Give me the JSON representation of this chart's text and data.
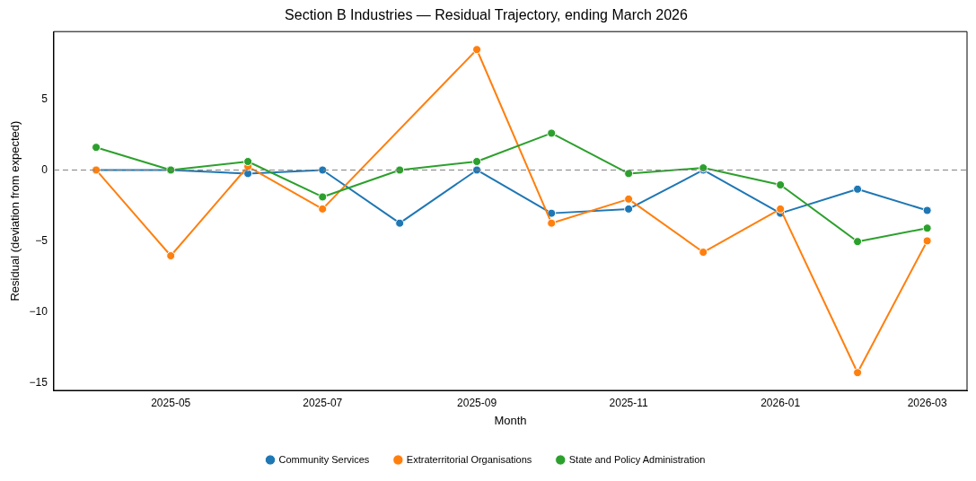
{
  "chart_data": {
    "type": "line",
    "title": "Section B Industries — Residual Trajectory, ending March 2026",
    "xlabel": "Month",
    "ylabel": "Residual (deviation from expected)",
    "x": [
      "2025-04",
      "2025-05",
      "2025-06",
      "2025-07",
      "2025-08",
      "2025-09",
      "2025-10",
      "2025-11",
      "2025-12",
      "2026-01",
      "2026-02",
      "2026-03"
    ],
    "series": [
      {
        "name": "Community Services",
        "color": "#1f77b4",
        "values": [
          0,
          0,
          -0.25,
          0,
          -3.75,
          0,
          -3.05,
          -2.75,
          0,
          -3.05,
          -1.35,
          -2.85
        ]
      },
      {
        "name": "Extraterritorial Organisations",
        "color": "#ff7f0e",
        "values": [
          0,
          -6.05,
          0.25,
          -2.75,
          null,
          8.5,
          -3.75,
          -2.05,
          -5.8,
          -2.75,
          -14.3,
          -5.0
        ]
      },
      {
        "name": "State and Policy Administration",
        "color": "#2ca02c",
        "values": [
          1.6,
          0,
          0.6,
          -1.9,
          0,
          0.6,
          2.6,
          -0.25,
          0.15,
          -1.05,
          -5.05,
          -4.1
        ]
      }
    ],
    "xlim": [
      "2025-03-15",
      "2026-03-17"
    ],
    "xticks": [
      "2025-05",
      "2025-07",
      "2025-09",
      "2025-11",
      "2026-01",
      "2026-03"
    ],
    "ylim": [
      -15.55,
      9.77
    ],
    "yticks": [
      -15,
      -10,
      -5,
      0,
      5
    ],
    "ref_lines": [
      {
        "axis": "y",
        "value": 0,
        "color": "#808080",
        "line_style": "dashed"
      }
    ],
    "grid": false,
    "legend": "bottom",
    "marker": "circle",
    "line_style": "solid"
  }
}
